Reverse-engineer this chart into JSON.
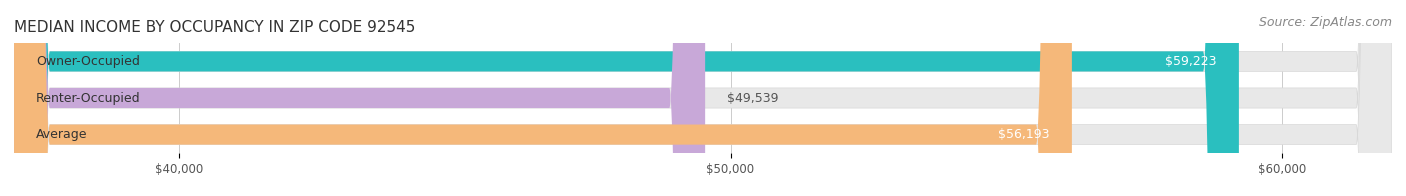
{
  "title": "MEDIAN INCOME BY OCCUPANCY IN ZIP CODE 92545",
  "source": "Source: ZipAtlas.com",
  "categories": [
    "Owner-Occupied",
    "Renter-Occupied",
    "Average"
  ],
  "values": [
    59223,
    49539,
    56193
  ],
  "bar_colors": [
    "#2abfbf",
    "#c8a8d8",
    "#f5b87a"
  ],
  "label_colors": [
    "#ffffff",
    "#555555",
    "#ffffff"
  ],
  "value_labels": [
    "$59,223",
    "$49,539",
    "$56,193"
  ],
  "bar_bg_color": "#f0f0f0",
  "x_min": 37000,
  "x_max": 62000,
  "x_ticks": [
    40000,
    50000,
    60000
  ],
  "x_tick_labels": [
    "$40,000",
    "$50,000",
    "$60,000"
  ],
  "title_fontsize": 11,
  "source_fontsize": 9,
  "bar_label_fontsize": 9,
  "value_fontsize": 9,
  "background_color": "#ffffff",
  "bar_height": 0.55,
  "bar_bg_alpha": 1.0
}
